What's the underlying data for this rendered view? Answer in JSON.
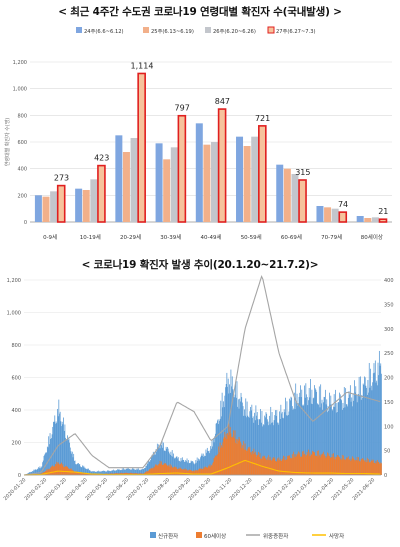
{
  "title1": "< 최근 4주간 수도권 코로나19 연령대별 확진자 수(국내발생) >",
  "title2": "< 코로나19 확진자 발생 추이(20.1.20~21.7.2)>",
  "colors": {
    "week1": "#7fa6e0",
    "week2": "#f2b08a",
    "week3": "#c3c6cc",
    "week4_fill": "#f6c39c",
    "week4_edge": "#e01f1f",
    "new_cases": "#5b9bd5",
    "over60": "#ed7d31",
    "severe": "#a5a5a5",
    "deaths": "#ffc000"
  },
  "chart_data": [
    {
      "type": "bar",
      "ylabel": "연령대별 확진자 수(명)",
      "ylim": [
        0,
        1200
      ],
      "yticks": [
        0,
        200,
        400,
        600,
        800,
        1000,
        1200
      ],
      "ytick_labels": [
        "0",
        "200",
        "400",
        "600",
        "800",
        "1,000",
        "1,200"
      ],
      "grid": true,
      "legend": "top",
      "categories": [
        "0-9세",
        "10-19세",
        "20-29세",
        "30-39세",
        "40-49세",
        "50-59세",
        "60-69세",
        "70-79세",
        "80세이상"
      ],
      "series": [
        {
          "name": "24주(6.6~6.12)",
          "values": [
            200,
            250,
            650,
            590,
            740,
            640,
            430,
            120,
            45
          ]
        },
        {
          "name": "25주(6.13~6.19)",
          "values": [
            190,
            240,
            525,
            470,
            580,
            570,
            400,
            110,
            30
          ]
        },
        {
          "name": "26주(6.20~6.26)",
          "values": [
            230,
            320,
            630,
            560,
            600,
            640,
            360,
            100,
            35
          ]
        },
        {
          "name": "27주(6.27~7.3)",
          "values": [
            273,
            423,
            1114,
            797,
            847,
            721,
            315,
            74,
            21
          ]
        }
      ],
      "data_labels": [
        "273",
        "423",
        "1,114",
        "797",
        "847",
        "721",
        "315",
        "74",
        "21"
      ]
    },
    {
      "type": "area",
      "x_range": [
        "2020-01-20",
        "2021-07-02"
      ],
      "x_tick_labels": [
        "2020-01-20",
        "2020-02-20",
        "2020-03-20",
        "2020-04-20",
        "2020-05-20",
        "2020-06-20",
        "2020-07-20",
        "2020-08-20",
        "2020-09-20",
        "2020-10-20",
        "2020-11-20",
        "2020-12-20",
        "2021-01-20",
        "2021-02-20",
        "2021-03-20",
        "2021-04-20",
        "2021-05-20",
        "2021-06-20"
      ],
      "ylim_left": [
        0,
        1200
      ],
      "yticks_left": [
        "0",
        "200",
        "400",
        "600",
        "800",
        "1,000",
        "1,200"
      ],
      "ylim_right": [
        0,
        400
      ],
      "yticks_right": [
        "0",
        "50",
        "100",
        "150",
        "200",
        "250",
        "300",
        "350",
        "400"
      ],
      "legend": "bottom",
      "series": [
        {
          "name": "신규환자",
          "axis": "left",
          "values_by_month": [
            0,
            60,
            480,
            90,
            25,
            30,
            45,
            40,
            230,
            120,
            90,
            200,
            700,
            480,
            410,
            430,
            570,
            600,
            520,
            560,
            650,
            800
          ]
        },
        {
          "name": "60세이상",
          "axis": "left",
          "values_by_month": [
            0,
            10,
            90,
            25,
            5,
            10,
            15,
            10,
            90,
            50,
            30,
            70,
            330,
            200,
            130,
            110,
            150,
            160,
            140,
            120,
            110,
            90
          ]
        },
        {
          "name": "위중증환자",
          "axis": "right",
          "values_by_month": [
            0,
            5,
            60,
            85,
            40,
            15,
            15,
            15,
            60,
            150,
            130,
            70,
            100,
            300,
            410,
            250,
            150,
            110,
            140,
            170,
            160,
            150
          ]
        },
        {
          "name": "사망자",
          "axis": "right",
          "values_by_month": [
            0,
            1,
            8,
            6,
            2,
            1,
            1,
            1,
            3,
            4,
            2,
            2,
            15,
            30,
            18,
            8,
            5,
            4,
            4,
            3,
            3,
            2
          ]
        }
      ]
    }
  ]
}
